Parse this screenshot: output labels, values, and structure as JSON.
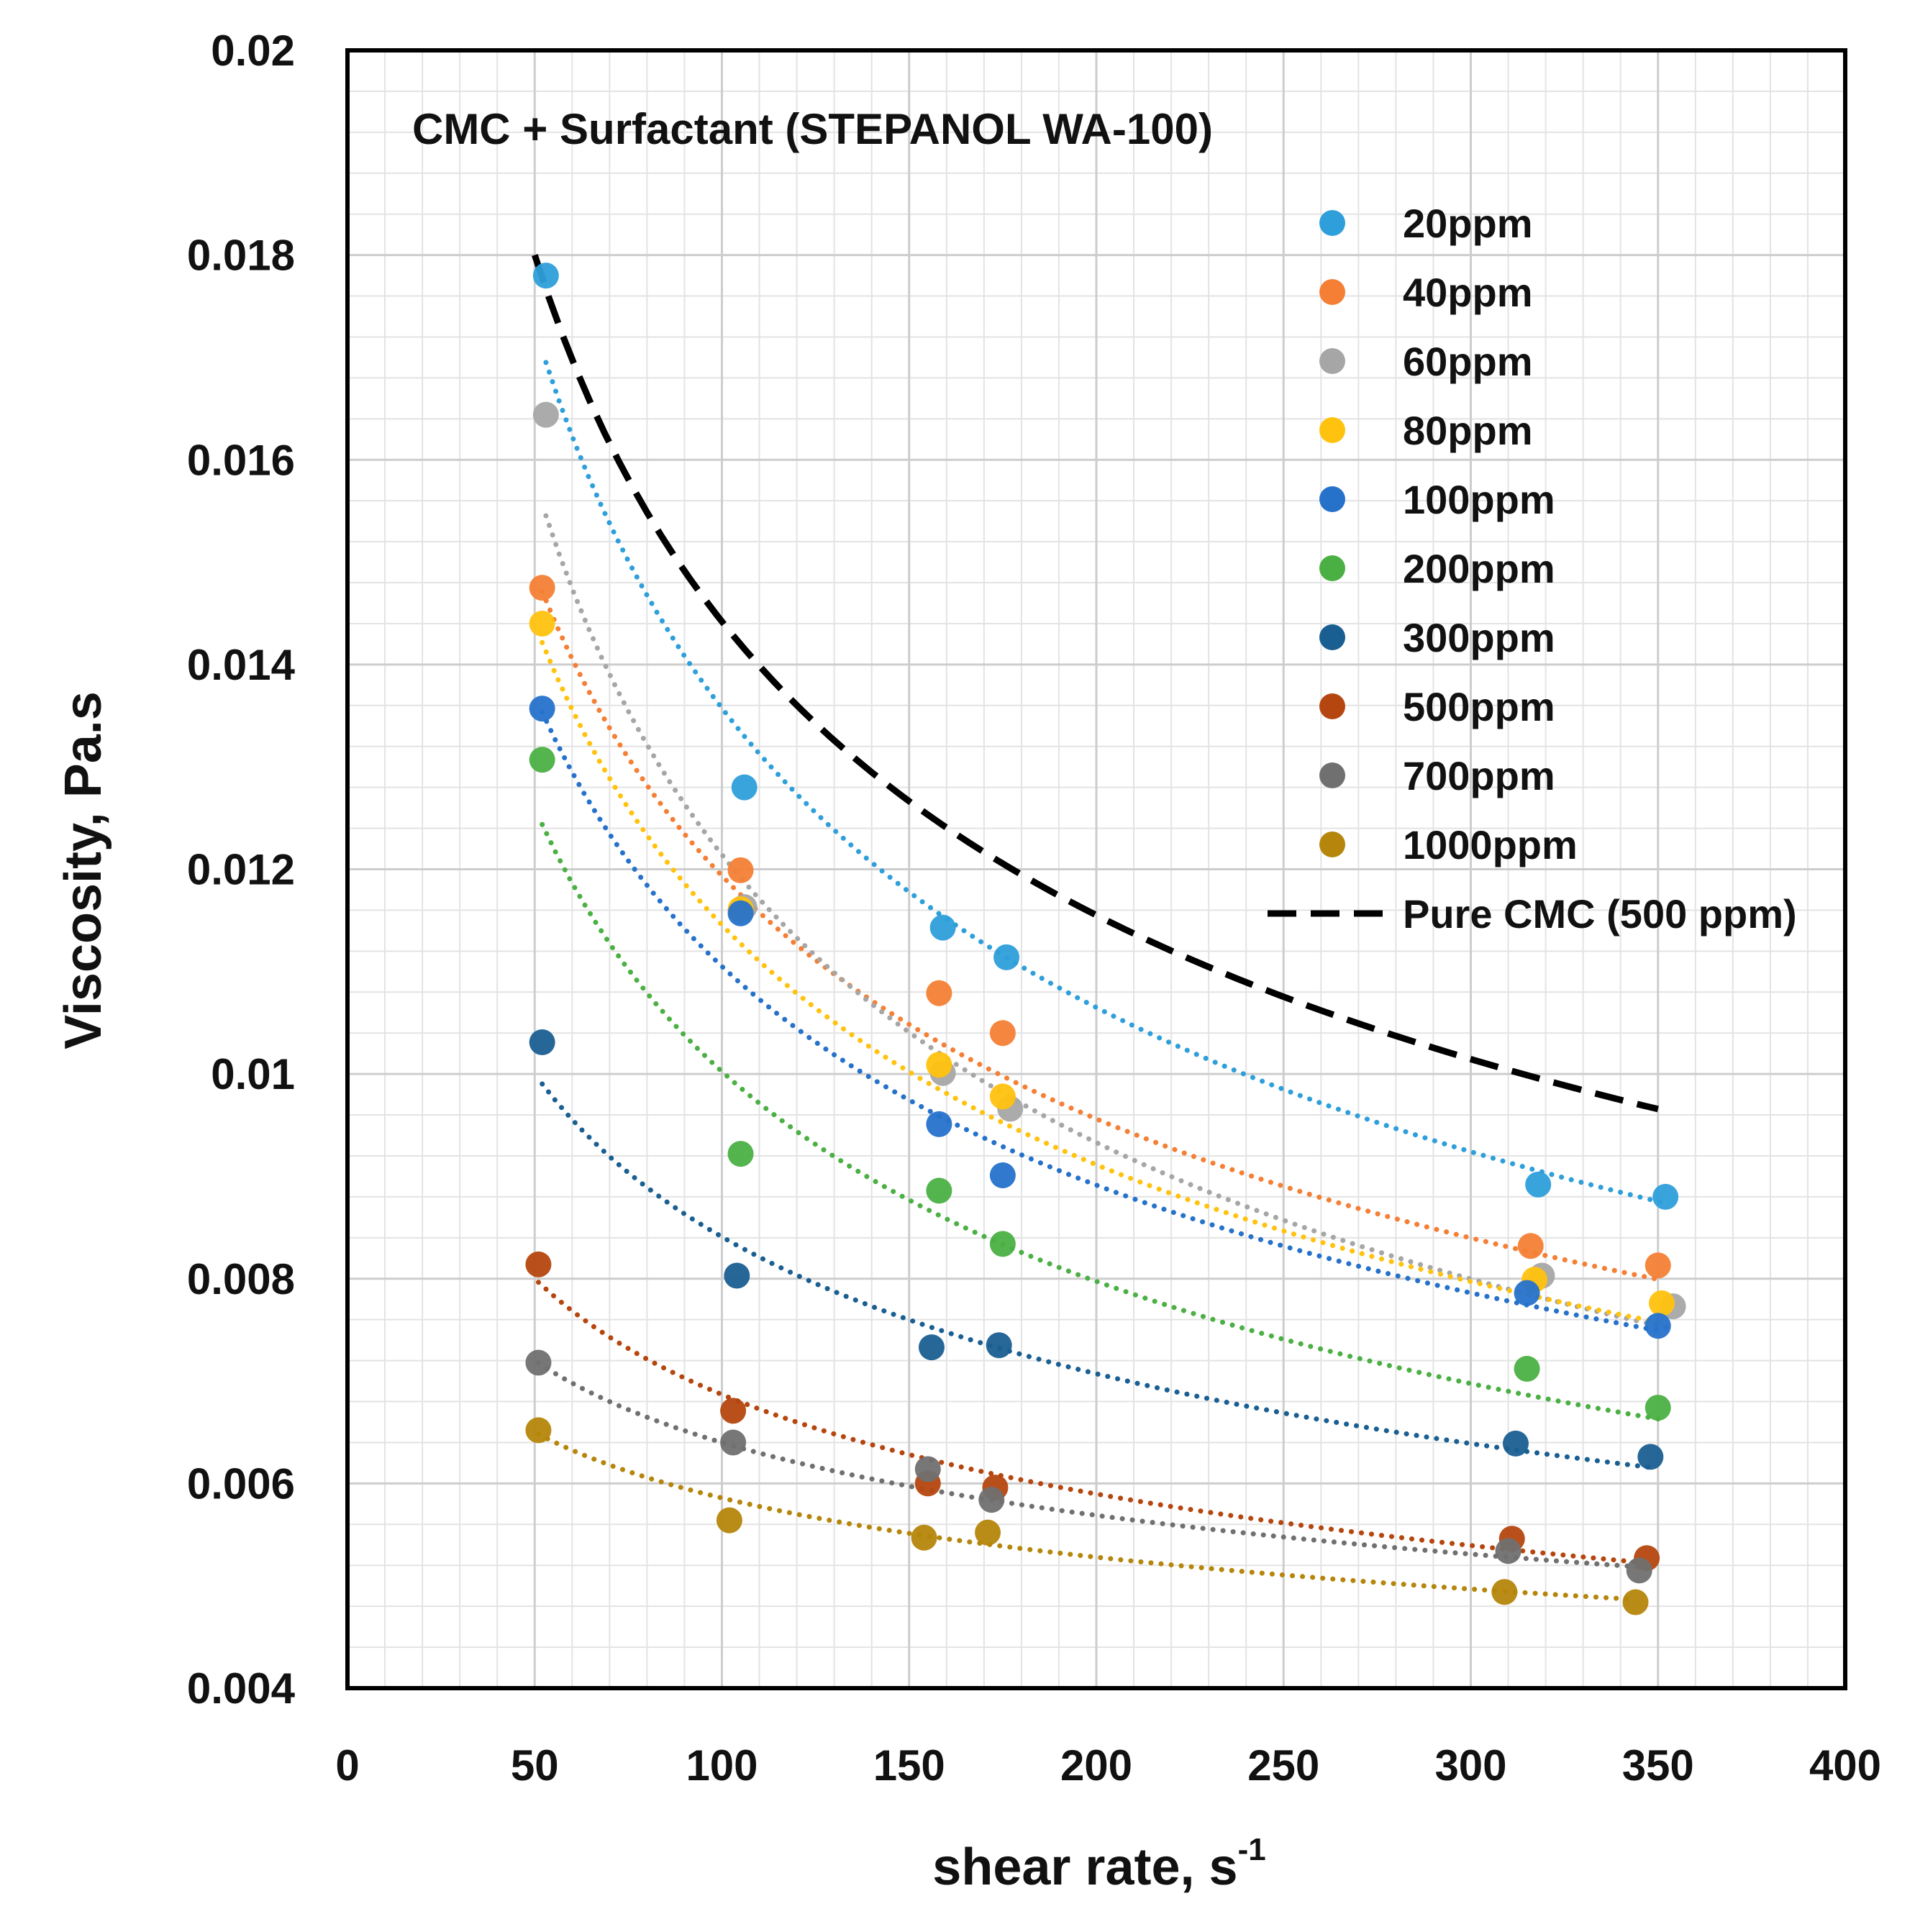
{
  "chart_data": {
    "type": "scatter",
    "title": "CMC + Surfactant (STEPANOL WA-100)",
    "xlabel": "shear rate, s",
    "xlabel_superscript": "-1",
    "ylabel": "Viscosity, Pa.s",
    "xlim": [
      0,
      400
    ],
    "ylim": [
      0.004,
      0.02
    ],
    "x_ticks": [
      0,
      50,
      100,
      150,
      200,
      250,
      300,
      350,
      400
    ],
    "x_tick_labels": [
      "0",
      "50",
      "100",
      "150",
      "200",
      "250",
      "300",
      "350",
      "400"
    ],
    "y_ticks": [
      0.004,
      0.006,
      0.008,
      0.01,
      0.012,
      0.014,
      0.016,
      0.018,
      0.02
    ],
    "y_tick_labels": [
      "0.004",
      "0.006",
      "0.008",
      "0.01",
      "0.012",
      "0.014",
      "0.016",
      "0.018",
      "0.02"
    ],
    "grid": true,
    "legend_position": "top-right",
    "series": [
      {
        "name": "20ppm",
        "color": "#2E9FDA",
        "x": [
          53,
          106,
          159,
          176,
          318,
          352
        ],
        "y": [
          0.0178,
          0.0128,
          0.01143,
          0.01114,
          0.00892,
          0.0088
        ],
        "trend_a": 0.0173,
        "trend_b": -0.35,
        "trend_x": [
          53,
          352
        ]
      },
      {
        "name": "40ppm",
        "color": "#F47F35",
        "x": [
          52,
          105,
          158,
          175,
          316,
          350
        ],
        "y": [
          0.01475,
          0.01199,
          0.01079,
          0.0104,
          0.00832,
          0.00813
        ],
        "trend_a": 0.0149,
        "trend_b": -0.32,
        "trend_x": [
          52,
          350
        ]
      },
      {
        "name": "60ppm",
        "color": "#A6A6A6",
        "x": [
          53,
          106,
          159,
          177,
          319,
          354
        ],
        "y": [
          0.01644,
          0.01163,
          0.01001,
          0.00966,
          0.00803,
          0.00773
        ],
        "trend_a": 0.0158,
        "trend_b": -0.38,
        "trend_x": [
          53,
          354
        ]
      },
      {
        "name": "80ppm",
        "color": "#FFC20E",
        "x": [
          52,
          105,
          158,
          175,
          317,
          351
        ],
        "y": [
          0.0144,
          0.01161,
          0.01009,
          0.00978,
          0.00799,
          0.00776
        ],
        "trend_a": 0.0144,
        "trend_b": -0.33,
        "trend_x": [
          52,
          351
        ]
      },
      {
        "name": "100ppm",
        "color": "#2672CB",
        "x": [
          52,
          105,
          158,
          175,
          315,
          350
        ],
        "y": [
          0.01357,
          0.01157,
          0.00951,
          0.00901,
          0.00786,
          0.00754
        ],
        "trend_a": 0.0137,
        "trend_b": -0.31,
        "trend_x": [
          52,
          350
        ]
      },
      {
        "name": "200ppm",
        "color": "#4BB044",
        "x": [
          52,
          105,
          158,
          175,
          315,
          350
        ],
        "y": [
          0.01307,
          0.00922,
          0.00886,
          0.00834,
          0.00712,
          0.00674
        ],
        "trend_a": 0.0126,
        "trend_b": -0.33,
        "trend_x": [
          52,
          350
        ]
      },
      {
        "name": "300ppm",
        "color": "#1A5F92",
        "x": [
          52,
          104,
          156,
          174,
          312,
          348
        ],
        "y": [
          0.01031,
          0.00803,
          0.00733,
          0.00735,
          0.00639,
          0.00626
        ],
        "trend_a": 0.01,
        "trend_b": -0.25,
        "trend_x": [
          52,
          348
        ]
      },
      {
        "name": "500ppm",
        "color": "#B5460F",
        "x": [
          51,
          103,
          155,
          173,
          311,
          347
        ],
        "y": [
          0.00814,
          0.00671,
          0.006,
          0.00596,
          0.00546,
          0.00527
        ],
        "trend_a": 0.008,
        "trend_b": -0.22,
        "trend_x": [
          51,
          347
        ]
      },
      {
        "name": "700ppm",
        "color": "#707070",
        "x": [
          51,
          103,
          155,
          172,
          310,
          345
        ],
        "y": [
          0.00718,
          0.0064,
          0.00614,
          0.00584,
          0.00534,
          0.00515
        ],
        "trend_a": 0.0072,
        "trend_b": -0.17,
        "trend_x": [
          51,
          345
        ]
      },
      {
        "name": "1000ppm",
        "color": "#B5860B",
        "x": [
          51,
          102,
          154,
          171,
          309,
          344
        ],
        "y": [
          0.00652,
          0.00564,
          0.00547,
          0.00552,
          0.00494,
          0.00484
        ],
        "trend_a": 0.0065,
        "trend_b": -0.15,
        "trend_x": [
          51,
          344
        ]
      }
    ],
    "reference_line": {
      "name": "Pure CMC (500 ppm)",
      "color": "#000000",
      "style": "dashed",
      "x_range": [
        50,
        350
      ],
      "a": 0.018,
      "b": -0.32
    }
  }
}
